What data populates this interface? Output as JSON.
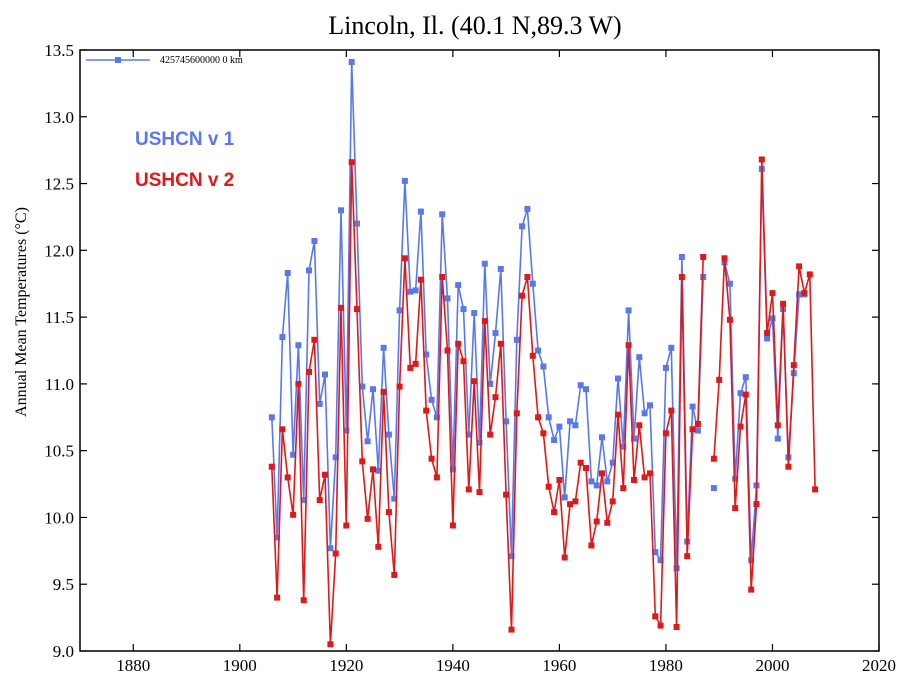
{
  "chart_data": {
    "type": "line",
    "title": "Lincoln, Il. (40.1 N,89.3 W)",
    "xlabel": "",
    "ylabel": "Annual Mean Temperatures (°C)",
    "xlim": [
      1870,
      2020
    ],
    "ylim": [
      9.0,
      13.5
    ],
    "x_ticks": [
      "1880",
      "1900",
      "1920",
      "1940",
      "1960",
      "1980",
      "2000",
      "2020"
    ],
    "y_ticks": [
      "9.0",
      "9.5",
      "10.0",
      "10.5",
      "11.0",
      "11.5",
      "12.0",
      "12.5",
      "13.0",
      "13.5"
    ],
    "grid": false,
    "legend": {
      "placement": "top-left",
      "entries": [
        "425745600000 0 km"
      ]
    },
    "annotations": [
      {
        "text": "USHCN v 1",
        "color": "#5a78ee"
      },
      {
        "text": "USHCN v 2",
        "color": "#e01818"
      }
    ],
    "series": [
      {
        "name": "USHCN v 1",
        "color": "#5a78ee",
        "x": [
          1906,
          1907,
          1908,
          1909,
          1910,
          1911,
          1912,
          1913,
          1914,
          1915,
          1916,
          1917,
          1918,
          1919,
          1920,
          1921,
          1922,
          1923,
          1924,
          1925,
          1926,
          1927,
          1928,
          1929,
          1930,
          1931,
          1932,
          1933,
          1934,
          1935,
          1936,
          1937,
          1938,
          1939,
          1940,
          1941,
          1942,
          1943,
          1944,
          1945,
          1946,
          1947,
          1948,
          1949,
          1950,
          1951,
          1952,
          1953,
          1954,
          1955,
          1956,
          1957,
          1958,
          1959,
          1960,
          1961,
          1962,
          1963,
          1964,
          1965,
          1966,
          1967,
          1968,
          1969,
          1970,
          1971,
          1972,
          1973,
          1974,
          1975,
          1976,
          1977,
          1978,
          1979,
          1980,
          1981,
          1982,
          1983,
          1984,
          1985,
          1986,
          1987,
          1988,
          1989,
          1990,
          1991,
          1992,
          1993,
          1994,
          1995,
          1996,
          1997,
          1998,
          1999,
          2000,
          2001,
          2002,
          2003,
          2004,
          2005,
          2006
        ],
        "values": [
          10.75,
          9.85,
          11.35,
          11.83,
          10.47,
          11.29,
          10.13,
          11.85,
          12.07,
          10.85,
          11.07,
          9.77,
          10.45,
          12.3,
          10.65,
          13.41,
          12.2,
          10.98,
          10.57,
          10.96,
          10.35,
          11.27,
          10.62,
          10.14,
          11.55,
          12.52,
          11.69,
          11.7,
          12.29,
          11.22,
          10.88,
          10.75,
          12.27,
          11.64,
          10.36,
          11.74,
          11.56,
          10.62,
          11.53,
          10.56,
          11.9,
          11.0,
          11.38,
          11.86,
          10.72,
          9.71,
          11.33,
          12.18,
          12.31,
          11.75,
          11.25,
          11.13,
          10.75,
          10.58,
          10.68,
          10.15,
          10.72,
          10.69,
          10.99,
          10.96,
          10.27,
          10.24,
          10.6,
          10.27,
          10.41,
          11.04,
          10.53,
          11.55,
          10.59,
          11.2,
          10.78,
          10.84,
          9.74,
          9.68,
          11.12,
          11.27,
          9.62,
          11.95,
          9.82,
          10.83,
          10.65,
          11.8,
          null,
          10.22,
          null,
          11.91,
          11.75,
          10.29,
          10.93,
          11.05,
          9.68,
          10.24,
          12.61,
          11.34,
          11.49,
          10.59,
          11.56,
          10.45,
          11.08,
          11.67,
          11.67
        ]
      },
      {
        "name": "USHCN v 2",
        "color": "#e01818",
        "x": [
          1906,
          1907,
          1908,
          1909,
          1910,
          1911,
          1912,
          1913,
          1914,
          1915,
          1916,
          1917,
          1918,
          1919,
          1920,
          1921,
          1922,
          1923,
          1924,
          1925,
          1926,
          1927,
          1928,
          1929,
          1930,
          1931,
          1932,
          1933,
          1934,
          1935,
          1936,
          1937,
          1938,
          1939,
          1940,
          1941,
          1942,
          1943,
          1944,
          1945,
          1946,
          1947,
          1948,
          1949,
          1950,
          1951,
          1952,
          1953,
          1954,
          1955,
          1956,
          1957,
          1958,
          1959,
          1960,
          1961,
          1962,
          1963,
          1964,
          1965,
          1966,
          1967,
          1968,
          1969,
          1970,
          1971,
          1972,
          1973,
          1974,
          1975,
          1976,
          1977,
          1978,
          1979,
          1980,
          1981,
          1982,
          1983,
          1984,
          1985,
          1986,
          1987,
          1988,
          1989,
          1990,
          1991,
          1992,
          1993,
          1994,
          1995,
          1996,
          1997,
          1998,
          1999,
          2000,
          2001,
          2002,
          2003,
          2004,
          2005,
          2006,
          2007,
          2008
        ],
        "values": [
          10.38,
          9.4,
          10.66,
          10.3,
          10.02,
          11.0,
          9.38,
          11.09,
          11.33,
          10.13,
          10.32,
          9.05,
          9.73,
          11.57,
          9.94,
          12.66,
          11.56,
          10.42,
          9.99,
          10.36,
          9.78,
          10.94,
          10.04,
          9.57,
          10.98,
          11.94,
          11.12,
          11.15,
          11.78,
          10.8,
          10.44,
          10.3,
          11.8,
          11.25,
          9.94,
          11.3,
          11.17,
          10.21,
          11.02,
          10.19,
          11.47,
          10.62,
          10.9,
          11.3,
          10.17,
          9.16,
          10.78,
          11.66,
          11.8,
          11.21,
          10.75,
          10.63,
          10.23,
          10.04,
          10.28,
          9.7,
          10.1,
          10.12,
          10.41,
          10.37,
          9.79,
          9.97,
          10.33,
          9.96,
          10.12,
          10.77,
          10.22,
          11.29,
          10.28,
          10.69,
          10.3,
          10.33,
          9.26,
          9.19,
          10.63,
          10.8,
          9.18,
          11.8,
          9.71,
          10.66,
          10.7,
          11.95,
          null,
          10.44,
          11.03,
          11.94,
          11.48,
          10.07,
          10.68,
          10.92,
          9.46,
          10.1,
          12.68,
          11.38,
          11.68,
          10.69,
          11.6,
          10.38,
          11.14,
          11.88,
          11.68,
          11.82,
          10.21
        ]
      }
    ]
  }
}
